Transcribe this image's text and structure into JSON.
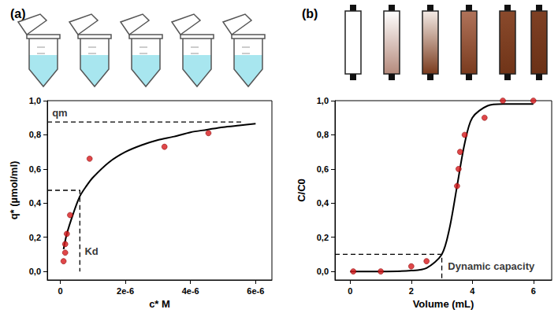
{
  "chart_data": [
    {
      "type": "scatter",
      "title": "(a)",
      "x_label": "c* M",
      "y_label": "q* (µmol/ml)",
      "xlim": [
        -4e-07,
        6.5e-06
      ],
      "ylim": [
        -0.05,
        1.0
      ],
      "xticks": [
        0,
        {
          "value": 2e-06,
          "label": "2e-6"
        },
        {
          "value": 4e-06,
          "label": "4e-6"
        },
        {
          "value": 6e-06,
          "label": "6e-6"
        }
      ],
      "yticks": [
        {
          "value": 0,
          "label": "0,0"
        },
        {
          "value": 0.2,
          "label": "0,2"
        },
        {
          "value": 0.4,
          "label": "0,4"
        },
        {
          "value": 0.6,
          "label": "0,6"
        },
        {
          "value": 0.8,
          "label": "0,8"
        },
        {
          "value": 1.0,
          "label": "1,0"
        }
      ],
      "grid": false,
      "series": [
        {
          "type": "line",
          "color": "#000000",
          "line_style": "solid",
          "x": [
            1e-07,
            2e-07,
            4e-07,
            6e-07,
            8e-07,
            1e-06,
            1.5e-06,
            2e-06,
            2.5e-06,
            3e-06,
            3.5e-06,
            4e-06,
            4.5e-06,
            5e-06,
            5.5e-06,
            6e-06
          ],
          "values": [
            0.13,
            0.22,
            0.34,
            0.44,
            0.5,
            0.55,
            0.64,
            0.7,
            0.74,
            0.77,
            0.79,
            0.815,
            0.83,
            0.845,
            0.855,
            0.865
          ]
        },
        {
          "type": "scatter",
          "color": "#d7191c",
          "marker": "circle",
          "x": [
            1e-07,
            1.5e-07,
            1.5e-07,
            2e-07,
            3e-07,
            9e-07,
            3.2e-06,
            4.55e-06
          ],
          "values": [
            0.06,
            0.11,
            0.16,
            0.22,
            0.33,
            0.66,
            0.73,
            0.81
          ]
        }
      ],
      "reference_lines": [
        {
          "line_style": "dashed",
          "color": "#000000",
          "x": [
            -4e-07,
            5.6e-06
          ],
          "y": [
            0.875,
            0.875
          ]
        },
        {
          "line_style": "dashed",
          "color": "#000000",
          "x": [
            -4e-07,
            6e-07,
            6e-07
          ],
          "y": [
            0.475,
            0.475,
            0.0
          ]
        }
      ],
      "annotations": [
        {
          "text": "qm",
          "x": -3e-07,
          "y": 0.93
        },
        {
          "text": "Kd",
          "x": 7e-07,
          "y": 0.12
        }
      ]
    },
    {
      "type": "scatter",
      "title": "(b)",
      "x_label": "Volume (mL)",
      "y_label": "C/C0",
      "xlim": [
        -0.5,
        6.6
      ],
      "ylim": [
        -0.05,
        1.0
      ],
      "xticks": [
        0,
        2,
        4,
        6
      ],
      "yticks": [
        {
          "value": 0,
          "label": "0,0"
        },
        {
          "value": 0.2,
          "label": "0,2"
        },
        {
          "value": 0.4,
          "label": "0,4"
        },
        {
          "value": 0.6,
          "label": "0,6"
        },
        {
          "value": 0.8,
          "label": "0,8"
        },
        {
          "value": 1.0,
          "label": "1,0"
        }
      ],
      "grid": false,
      "series": [
        {
          "type": "line",
          "color": "#000000",
          "line_style": "solid",
          "x": [
            0,
            1,
            2,
            2.5,
            3,
            3.25,
            3.5,
            3.75,
            4,
            4.5,
            5,
            6
          ],
          "values": [
            0,
            0,
            0.005,
            0.02,
            0.1,
            0.25,
            0.5,
            0.75,
            0.9,
            0.97,
            0.98,
            0.98
          ]
        },
        {
          "type": "scatter",
          "color": "#d7191c",
          "marker": "circle",
          "x": [
            0.1,
            1,
            2,
            2.5,
            3.5,
            3.55,
            3.6,
            3.75,
            4.4,
            5,
            6
          ],
          "values": [
            0,
            0,
            0.03,
            0.06,
            0.5,
            0.6,
            0.7,
            0.8,
            0.9,
            1.0,
            1.0
          ]
        }
      ],
      "reference_lines": [
        {
          "line_style": "dashed",
          "color": "#000000",
          "x": [
            -0.5,
            3.0,
            3.0
          ],
          "y": [
            0.1,
            0.1,
            -0.05
          ]
        }
      ],
      "annotations": [
        {
          "text": "Dynamic capacity",
          "x": 3.15,
          "y": 0.03
        }
      ]
    }
  ]
}
